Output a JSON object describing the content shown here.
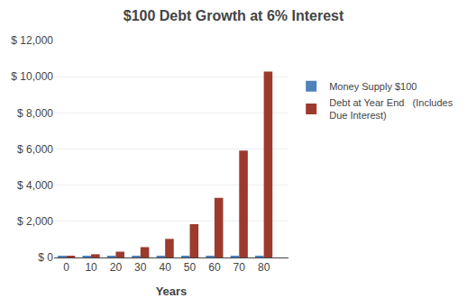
{
  "chart_data": {
    "type": "bar",
    "title": "$100 Debt Growth at 6% Interest",
    "xlabel": "Years",
    "x": [
      0,
      10,
      20,
      30,
      40,
      50,
      60,
      70,
      80
    ],
    "series": [
      {
        "name": "Money Supply $100",
        "color": "#4F81BD",
        "values": [
          100,
          100,
          100,
          100,
          100,
          100,
          100,
          100,
          100
        ]
      },
      {
        "name": "Debt at Year End   (Includes\nDue Interest)",
        "color": "#9C3A2E",
        "values": [
          100.0,
          179.08,
          320.71,
          574.35,
          1028.57,
          1842.02,
          3298.77,
          5909.76,
          10285.72
        ]
      }
    ],
    "xlim": [
      -5,
      90
    ],
    "xticks": [
      0,
      10,
      20,
      30,
      40,
      50,
      60,
      70,
      80
    ],
    "ylim": [
      0,
      12000
    ],
    "yticks": [
      {
        "value": 0,
        "label": "$ 0"
      },
      {
        "value": 2000,
        "label": "$ 2,000"
      },
      {
        "value": 4000,
        "label": "$ 4,000"
      },
      {
        "value": 6000,
        "label": "$ 6,000"
      },
      {
        "value": 8000,
        "label": "$ 8,000"
      },
      {
        "value": 10000,
        "label": "$ 10,000"
      },
      {
        "value": 12000,
        "label": "$ 12,000"
      }
    ],
    "grid": true,
    "legend": "right"
  }
}
